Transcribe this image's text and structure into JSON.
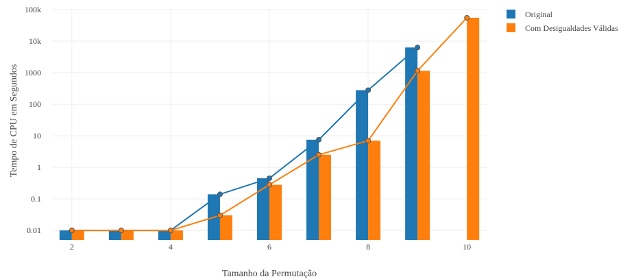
{
  "chart_data": {
    "type": "bar",
    "title": "",
    "xlabel": "Tamanho da Permutação",
    "ylabel": "Tempo de CPU em Segundos",
    "yscale": "log",
    "ylim": [
      0.005,
      100000
    ],
    "xlim": [
      1.6,
      10.4
    ],
    "x_ticks": [
      2,
      4,
      6,
      8,
      10
    ],
    "y_ticks": [
      {
        "value": 0.01,
        "label": "0.01"
      },
      {
        "value": 0.1,
        "label": "0.1"
      },
      {
        "value": 1,
        "label": "1"
      },
      {
        "value": 10,
        "label": "10"
      },
      {
        "value": 100,
        "label": "100"
      },
      {
        "value": 1000,
        "label": "1000"
      },
      {
        "value": 10000,
        "label": "10k"
      },
      {
        "value": 100000,
        "label": "100k"
      }
    ],
    "grid": true,
    "legend_position": "top-right",
    "x": [
      2,
      3,
      4,
      5,
      6,
      7,
      8,
      9,
      10
    ],
    "series": [
      {
        "name": "Original",
        "color": "#1f77b4",
        "values": [
          0.01,
          0.01,
          0.01,
          0.14,
          0.45,
          7.5,
          280,
          6300,
          null
        ],
        "marker_line": true
      },
      {
        "name": "Com Desigualdades Válidas",
        "color": "#ff7f0e",
        "values": [
          0.01,
          0.01,
          0.01,
          0.03,
          0.28,
          2.5,
          7,
          1150,
          55000
        ],
        "marker_line": true
      }
    ]
  }
}
